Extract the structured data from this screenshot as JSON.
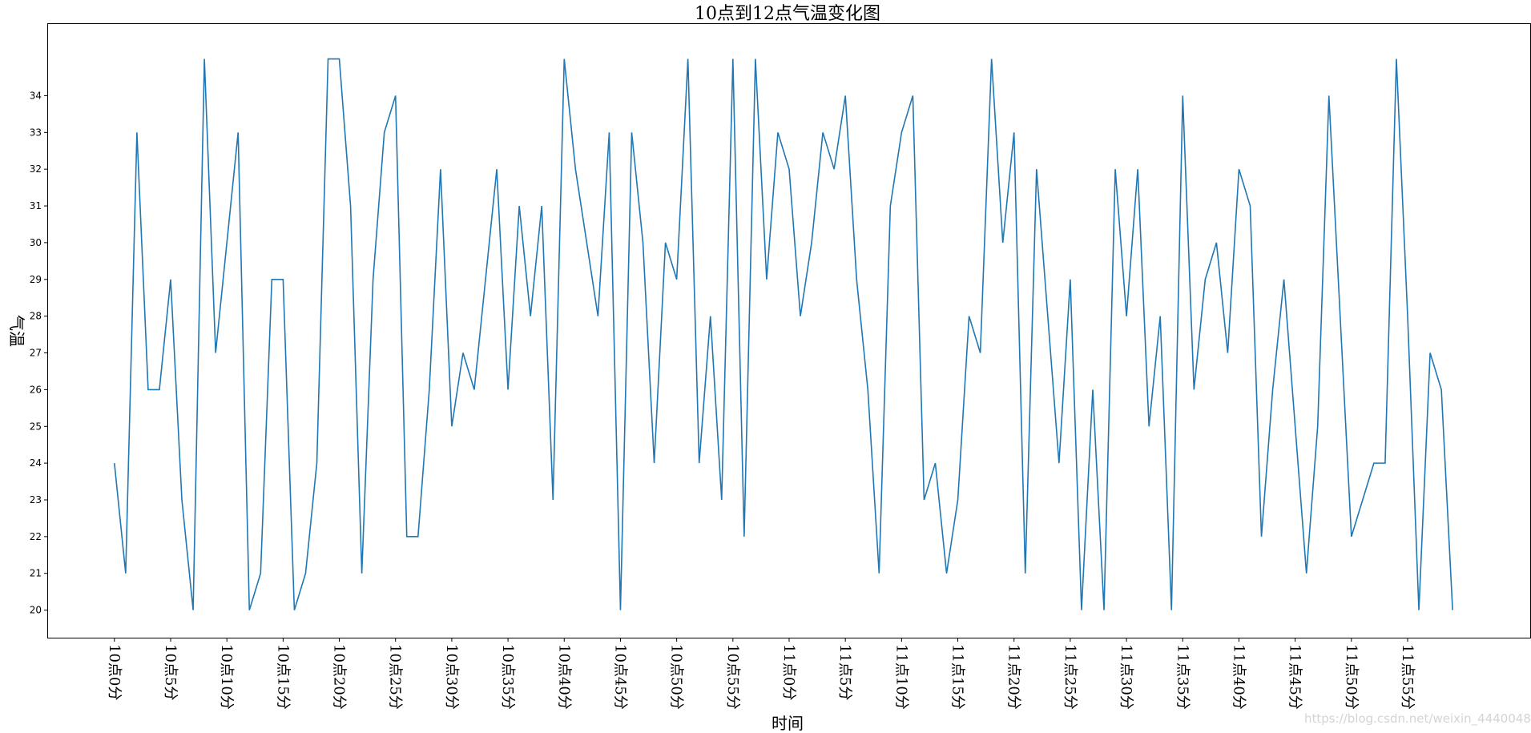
{
  "watermark": "https://blog.csdn.net/weixin_44400484",
  "chart_data": {
    "type": "line",
    "title": "10点到12点气温变化图",
    "xlabel": "时间",
    "ylabel": "气温",
    "color": "#1f77b4",
    "grid": false,
    "ylim": [
      19.25,
      35.95
    ],
    "yticks": [
      20,
      21,
      22,
      23,
      24,
      25,
      26,
      27,
      28,
      29,
      30,
      31,
      32,
      33,
      34
    ],
    "xlim": [
      -5.9,
      125.9
    ],
    "xtick_positions": [
      0,
      5,
      10,
      15,
      20,
      25,
      30,
      35,
      40,
      45,
      50,
      55,
      60,
      65,
      70,
      75,
      80,
      85,
      90,
      95,
      100,
      105,
      110,
      115
    ],
    "xtick_labels": [
      "10点0分",
      "10点5分",
      "10点10分",
      "10点15分",
      "10点20分",
      "10点25分",
      "10点30分",
      "10点35分",
      "10点40分",
      "10点45分",
      "10点50分",
      "10点55分",
      "11点0分",
      "11点5分",
      "11点10分",
      "11点15分",
      "11点20分",
      "11点25分",
      "11点30分",
      "11点35分",
      "11点40分",
      "11点45分",
      "11点50分",
      "11点55分"
    ],
    "x": [
      0,
      1,
      2,
      3,
      4,
      5,
      6,
      7,
      8,
      9,
      10,
      11,
      12,
      13,
      14,
      15,
      16,
      17,
      18,
      19,
      20,
      21,
      22,
      23,
      24,
      25,
      26,
      27,
      28,
      29,
      30,
      31,
      32,
      33,
      34,
      35,
      36,
      37,
      38,
      39,
      40,
      41,
      42,
      43,
      44,
      45,
      46,
      47,
      48,
      49,
      50,
      51,
      52,
      53,
      54,
      55,
      56,
      57,
      58,
      59,
      60,
      61,
      62,
      63,
      64,
      65,
      66,
      67,
      68,
      69,
      70,
      71,
      72,
      73,
      74,
      75,
      76,
      77,
      78,
      79,
      80,
      81,
      82,
      83,
      84,
      85,
      86,
      87,
      88,
      89,
      90,
      91,
      92,
      93,
      94,
      95,
      96,
      97,
      98,
      99,
      100,
      101,
      102,
      103,
      104,
      105,
      106,
      107,
      108,
      109,
      110,
      111,
      112,
      113,
      114,
      115,
      116,
      117,
      118,
      119
    ],
    "values": [
      24,
      21,
      33,
      26,
      26,
      29,
      23,
      20,
      35,
      27,
      30,
      33,
      20,
      21,
      29,
      29,
      20,
      21,
      24,
      35,
      35,
      31,
      21,
      29,
      33,
      34,
      22,
      22,
      26,
      32,
      25,
      27,
      26,
      29,
      32,
      26,
      31,
      28,
      31,
      23,
      35,
      32,
      30,
      28,
      33,
      20,
      33,
      30,
      24,
      30,
      29,
      35,
      24,
      28,
      23,
      35,
      22,
      35,
      29,
      33,
      32,
      28,
      30,
      33,
      32,
      34,
      29,
      26,
      21,
      31,
      33,
      34,
      23,
      24,
      21,
      23,
      28,
      27,
      35,
      30,
      33,
      21,
      32,
      28,
      24,
      29,
      20,
      26,
      20,
      32,
      28,
      32,
      25,
      28,
      20,
      34,
      26,
      29,
      30,
      27,
      32,
      31,
      22,
      26,
      29,
      25,
      21,
      25,
      34,
      28,
      22,
      23,
      24,
      24,
      35,
      28,
      20,
      27,
      26,
      20
    ]
  }
}
